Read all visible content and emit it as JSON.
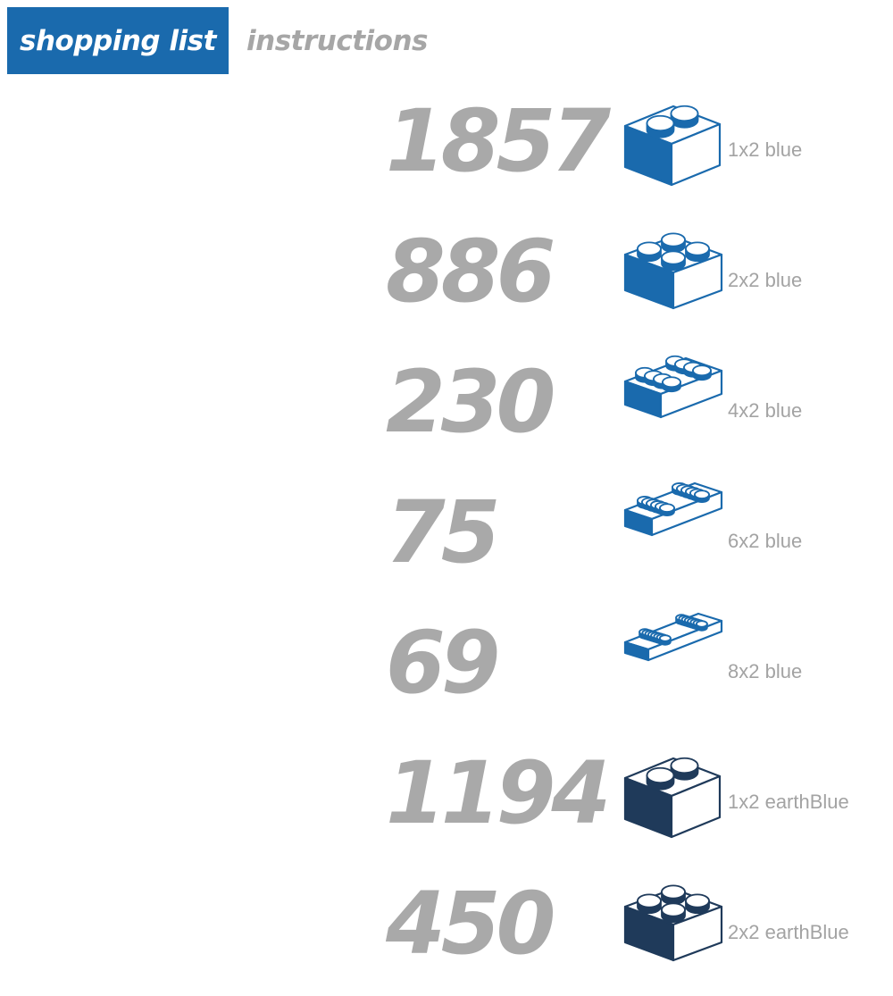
{
  "tabs": [
    {
      "label": "shopping list",
      "active": true
    },
    {
      "label": "instructions",
      "active": false
    }
  ],
  "colors": {
    "blue": "#1a6aad",
    "earthBlue": "#1f3a5a",
    "count_text": "#a9a9a9",
    "label_text": "#a3a3a3"
  },
  "items": [
    {
      "count": "1857",
      "label": "1x2 blue",
      "icon": "brick-1x2-icon",
      "studs_long": 2,
      "color": "#1a6aad"
    },
    {
      "count": "886",
      "label": "2x2 blue",
      "icon": "brick-2x2-icon",
      "studs_long": 2,
      "color": "#1a6aad"
    },
    {
      "count": "230",
      "label": "4x2 blue",
      "icon": "brick-4x2-icon",
      "studs_long": 4,
      "color": "#1a6aad"
    },
    {
      "count": "75",
      "label": "6x2 blue",
      "icon": "brick-6x2-icon",
      "studs_long": 6,
      "color": "#1a6aad"
    },
    {
      "count": "69",
      "label": "8x2 blue",
      "icon": "brick-8x2-icon",
      "studs_long": 8,
      "color": "#1a6aad"
    },
    {
      "count": "1194",
      "label": "1x2 earthBlue",
      "icon": "brick-1x2-icon",
      "studs_long": 2,
      "color": "#1f3a5a"
    },
    {
      "count": "450",
      "label": "2x2 earthBlue",
      "icon": "brick-2x2-icon",
      "studs_long": 2,
      "color": "#1f3a5a"
    }
  ]
}
